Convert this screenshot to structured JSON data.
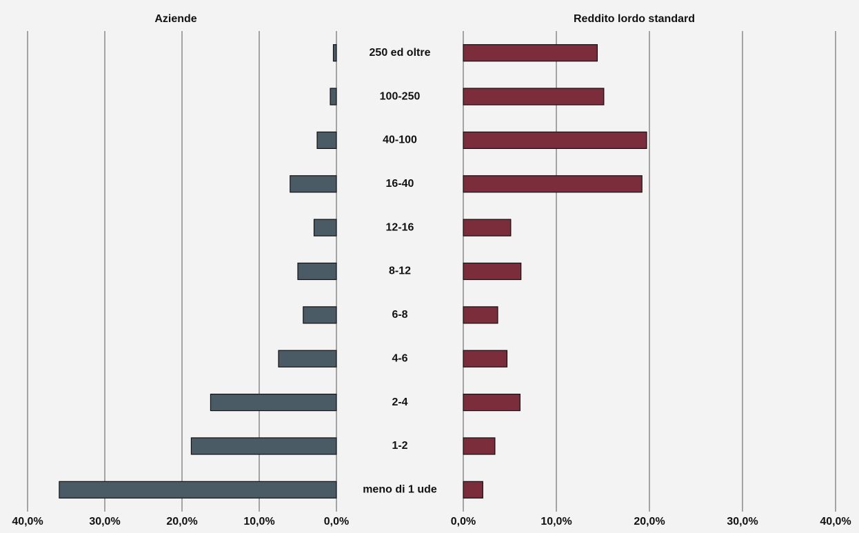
{
  "chart_data": {
    "type": "butterfly",
    "categories": [
      "250 ed oltre",
      "100-250",
      "40-100",
      "16-40",
      "12-16",
      "8-12",
      "6-8",
      "4-6",
      "2-4",
      "1-2",
      "meno di 1 ude"
    ],
    "grid": true,
    "series": [
      {
        "name": "Aziende",
        "color": "#4b5b66",
        "values": [
          0.4,
          0.8,
          2.5,
          6.0,
          2.9,
          5.0,
          4.3,
          7.5,
          16.3,
          18.8,
          35.9
        ],
        "xlim": [
          0,
          40
        ],
        "xticks": [
          {
            "value": 40,
            "label": "40,0%"
          },
          {
            "value": 30,
            "label": "30,0%"
          },
          {
            "value": 20,
            "label": "20,0%"
          },
          {
            "value": 10,
            "label": "10,0%"
          },
          {
            "value": 0,
            "label": "0,0%"
          }
        ]
      },
      {
        "name": "Reddito lordo standard",
        "color": "#7b2d3c",
        "values": [
          14.4,
          15.1,
          19.7,
          19.2,
          5.1,
          6.2,
          3.7,
          4.7,
          6.1,
          3.4,
          2.1
        ],
        "xlim": [
          0,
          40
        ],
        "xticks": [
          {
            "value": 0,
            "label": "0,0%"
          },
          {
            "value": 10,
            "label": "10,0%"
          },
          {
            "value": 20,
            "label": "20,0%"
          },
          {
            "value": 30,
            "label": "30,0%"
          },
          {
            "value": 40,
            "label": "40,0%"
          }
        ]
      }
    ]
  }
}
